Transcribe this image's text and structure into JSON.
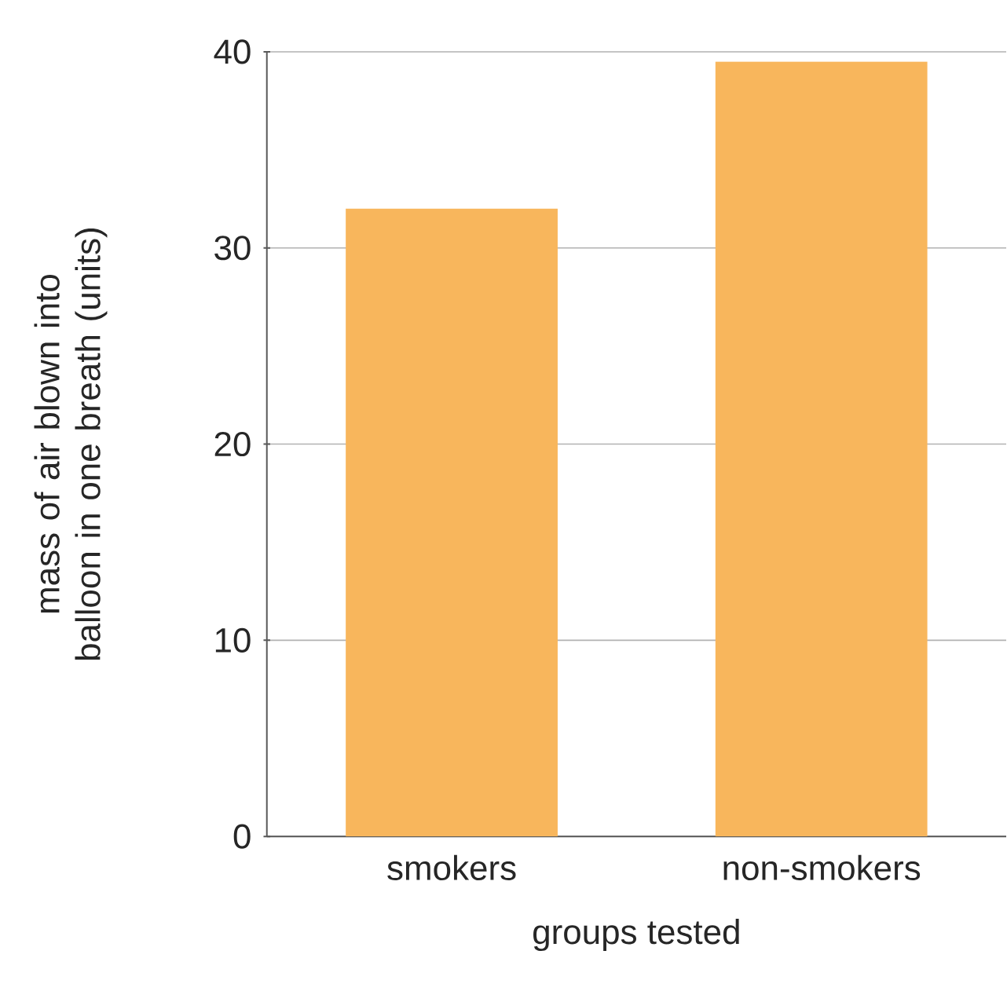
{
  "chart_data": {
    "type": "bar",
    "xlabel": "groups tested",
    "ylabel": "mass of air blown into balloon in one breath (units)",
    "categories": [
      "smokers",
      "non-smokers"
    ],
    "values": [
      32,
      39.5
    ],
    "color": "#f8b65c",
    "ylim": [
      0,
      40
    ],
    "yticks": [
      0,
      10,
      20,
      30,
      40
    ],
    "grid": "y"
  }
}
